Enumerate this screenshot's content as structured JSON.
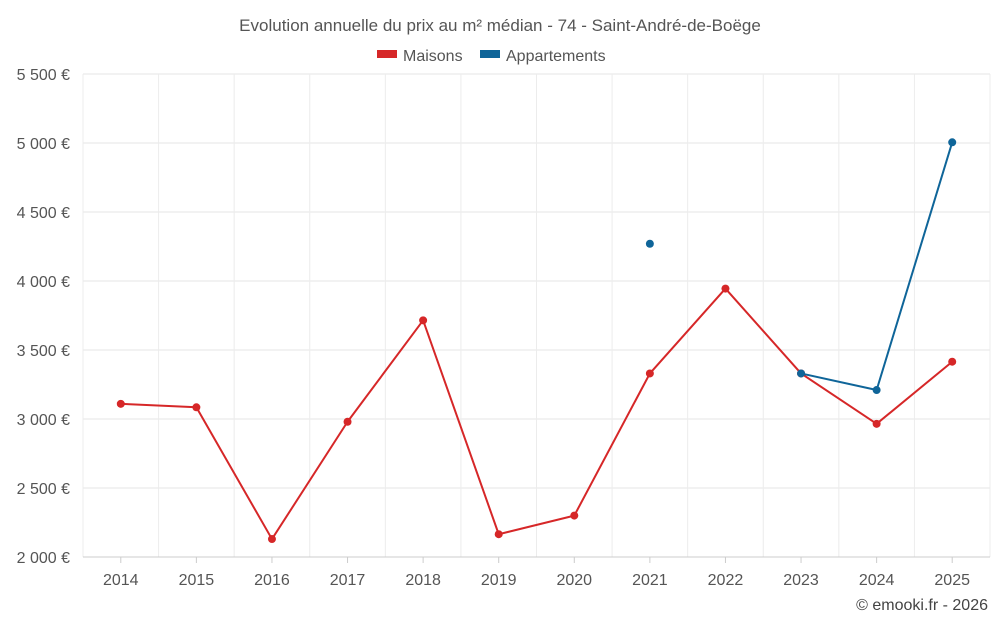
{
  "chart_data": {
    "type": "line",
    "title": "Evolution annuelle du prix au m² médian - 74 - Saint-André-de-Boëge",
    "categories": [
      "2014",
      "2015",
      "2016",
      "2017",
      "2018",
      "2019",
      "2020",
      "2021",
      "2022",
      "2023",
      "2024",
      "2025"
    ],
    "ylim": [
      2000,
      5500
    ],
    "yticks": [
      2000,
      2500,
      3000,
      3500,
      4000,
      4500,
      5000,
      5500
    ],
    "ytick_labels": [
      "2 000 €",
      "2 500 €",
      "3 000 €",
      "3 500 €",
      "4 000 €",
      "4 500 €",
      "5 000 €",
      "5 500 €"
    ],
    "grid": true,
    "legend_position": "top-center",
    "series": [
      {
        "name": "Maisons",
        "color": "#d62728",
        "values": [
          3110,
          3085,
          2130,
          2980,
          3715,
          2165,
          2300,
          3330,
          3945,
          3330,
          2965,
          3415
        ]
      },
      {
        "name": "Appartements",
        "color": "#0f6599",
        "values": [
          null,
          null,
          null,
          null,
          null,
          null,
          null,
          4270,
          null,
          3330,
          3210,
          5005
        ]
      }
    ]
  },
  "credit": "© emooki.fr - 2026"
}
